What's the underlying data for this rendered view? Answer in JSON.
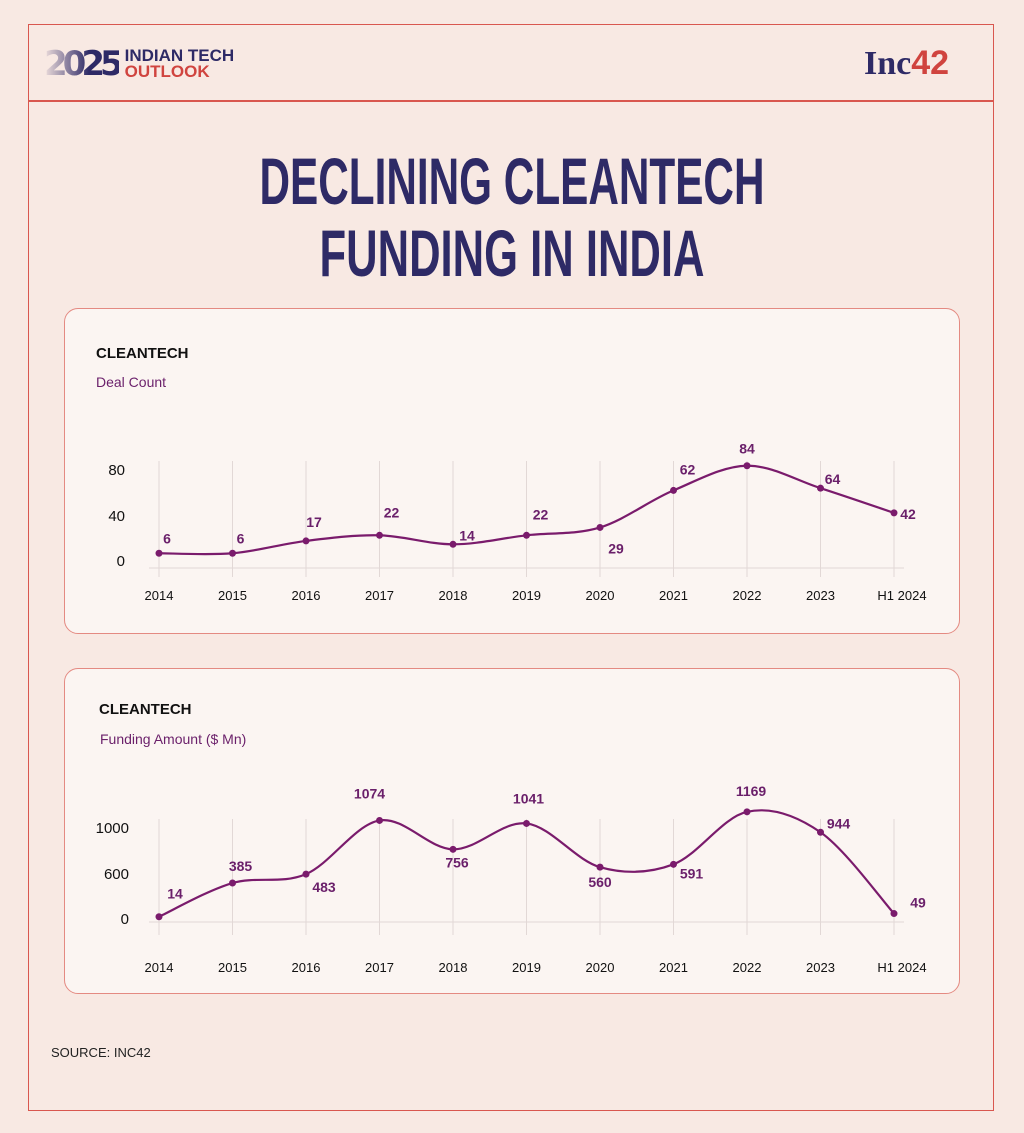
{
  "header": {
    "logo_year": "2025",
    "logo_line1": "INDIAN TECH",
    "logo_line2": "OUTLOOK",
    "brand": "Inc",
    "brand_num": "42"
  },
  "title": {
    "line1": "DECLINING CLEANTECH",
    "line2": "FUNDING IN INDIA"
  },
  "colors": {
    "line": "#7a1b6c",
    "label": "#6a1f6a",
    "frame": "#d9574f",
    "title": "#2e2a66"
  },
  "chart_data": [
    {
      "type": "line",
      "title": "CLEANTECH",
      "subtitle": "Deal Count",
      "categories": [
        "2014",
        "2015",
        "2016",
        "2017",
        "2018",
        "2019",
        "2020",
        "2021",
        "2022",
        "2023",
        "H1 2024"
      ],
      "values": [
        6,
        6,
        17,
        22,
        14,
        22,
        29,
        62,
        84,
        64,
        42
      ],
      "yticks": [
        "0",
        "40",
        "80"
      ],
      "ytick_values": [
        0,
        40,
        80
      ],
      "ylim": [
        0,
        90
      ],
      "grid": "vertical"
    },
    {
      "type": "line",
      "title": "CLEANTECH",
      "subtitle": "Funding Amount ($ Mn)",
      "categories": [
        "2014",
        "2015",
        "2016",
        "2017",
        "2018",
        "2019",
        "2020",
        "2021",
        "2022",
        "2023",
        "H1 2024"
      ],
      "values": [
        14,
        385,
        483,
        1074,
        756,
        1041,
        560,
        591,
        1169,
        944,
        49
      ],
      "yticks": [
        "0",
        "600",
        "1000"
      ],
      "ytick_values": [
        0,
        600,
        1000
      ],
      "ylim": [
        0,
        1200
      ],
      "grid": "vertical"
    }
  ],
  "source": "SOURCE: INC42"
}
